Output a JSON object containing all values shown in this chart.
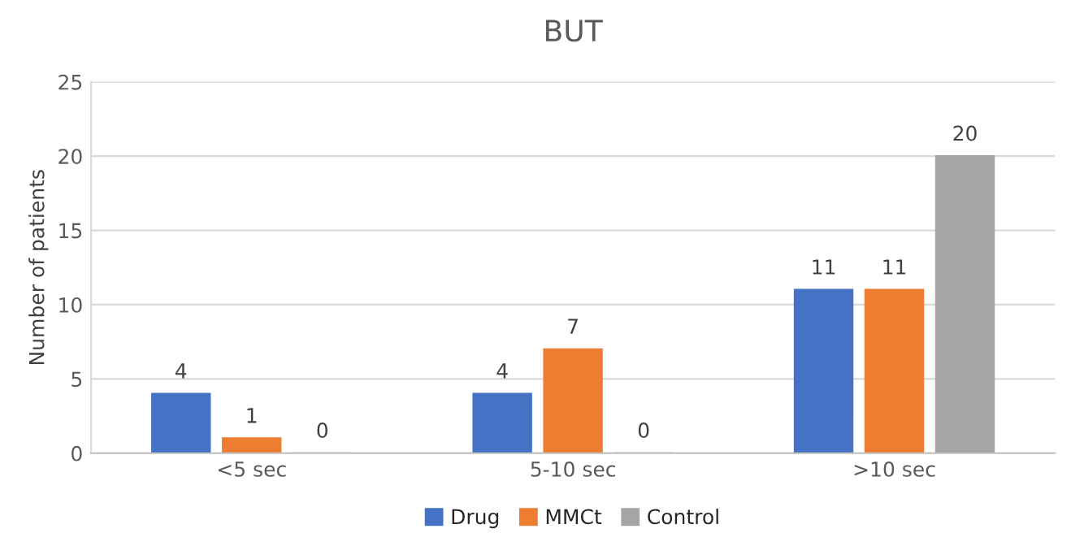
{
  "chart_data": {
    "type": "bar",
    "title": "BUT",
    "ylabel": "Number of patients",
    "categories": [
      "<5 sec",
      "5-10 sec",
      ">10 sec"
    ],
    "series": [
      {
        "name": "Drug",
        "color": "#4472c4",
        "values": [
          4,
          4,
          11
        ]
      },
      {
        "name": "MMCt",
        "color": "#ed7d31",
        "values": [
          1,
          7,
          11
        ]
      },
      {
        "name": "Control",
        "color": "#a5a5a5",
        "values": [
          0,
          0,
          20
        ]
      }
    ],
    "ylim": [
      0,
      25
    ],
    "yticks": [
      0,
      5,
      10,
      15,
      20,
      25
    ],
    "grid": "y",
    "legend": "bottom",
    "data_labels": true
  }
}
